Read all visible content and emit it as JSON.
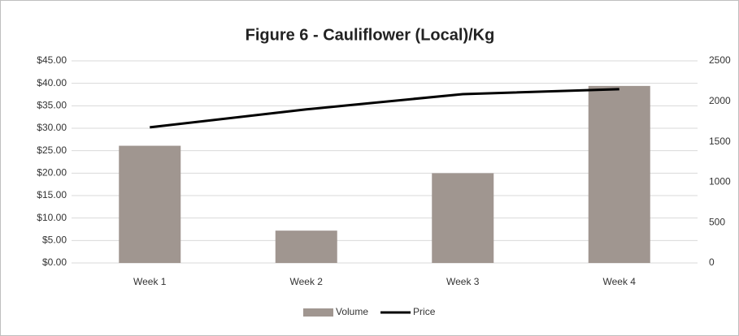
{
  "chart_data": {
    "type": "bar",
    "title": "Figure 6 - Cauliflower (Local)/Kg",
    "categories": [
      "Week 1",
      "Week 2",
      "Week 3",
      "Week 4"
    ],
    "series": [
      {
        "name": "Volume",
        "type": "bar",
        "color": "#a09690",
        "axis": "y2",
        "values": [
          1450,
          400,
          1110,
          2190
        ]
      },
      {
        "name": "Price",
        "type": "line",
        "color": "#000000",
        "axis": "y",
        "values": [
          30.2,
          34.2,
          37.6,
          38.7
        ]
      }
    ],
    "ylim": [
      0,
      45
    ],
    "yticks": [
      {
        "value": 0,
        "label": "$0.00"
      },
      {
        "value": 5,
        "label": "$5.00"
      },
      {
        "value": 10,
        "label": "$10.00"
      },
      {
        "value": 15,
        "label": "$15.00"
      },
      {
        "value": 20,
        "label": "$20.00"
      },
      {
        "value": 25,
        "label": "$25.00"
      },
      {
        "value": 30,
        "label": "$30.00"
      },
      {
        "value": 35,
        "label": "$35.00"
      },
      {
        "value": 40,
        "label": "$40.00"
      },
      {
        "value": 45,
        "label": "$45.00"
      }
    ],
    "y2lim": [
      0,
      2500
    ],
    "y2ticks": [
      0,
      500,
      1000,
      1500,
      2000,
      2500
    ],
    "grid": true,
    "legend": "bottom"
  }
}
